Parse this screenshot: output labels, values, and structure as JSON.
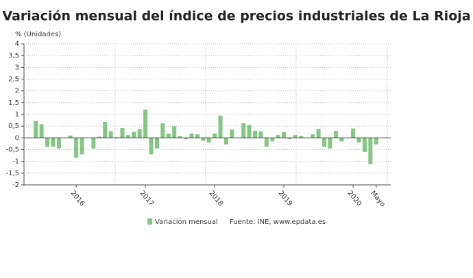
{
  "chart_data": {
    "type": "bar",
    "title": "Variación mensual del índice de precios industriales de La Rioja",
    "y_label": "% (Unidades)",
    "source": "Fuente: INE, www.epdata.es",
    "categories": [
      null,
      null,
      null,
      null,
      null,
      null,
      null,
      "2016",
      null,
      null,
      null,
      null,
      null,
      null,
      null,
      null,
      null,
      null,
      null,
      "2017",
      null,
      null,
      null,
      null,
      null,
      null,
      null,
      null,
      null,
      null,
      null,
      "2018",
      null,
      null,
      null,
      null,
      null,
      null,
      null,
      null,
      null,
      null,
      null,
      "2019",
      null,
      null,
      null,
      null,
      null,
      null,
      null,
      null,
      null,
      null,
      null,
      "2020",
      null,
      null,
      null,
      "Mayo"
    ],
    "series": [
      {
        "name": "Variación mensual",
        "color": "#82c782",
        "values": [
          0.72,
          0.58,
          -0.38,
          -0.38,
          -0.45,
          0.0,
          0.1,
          -0.85,
          -0.7,
          0.0,
          -0.45,
          0.05,
          0.68,
          0.28,
          0.03,
          0.42,
          0.12,
          0.25,
          0.38,
          1.2,
          -0.7,
          -0.45,
          0.62,
          0.18,
          0.5,
          0.07,
          -0.05,
          0.18,
          0.15,
          -0.12,
          -0.2,
          0.18,
          0.95,
          -0.28,
          0.35,
          0.0,
          0.62,
          0.55,
          0.3,
          0.28,
          -0.38,
          -0.15,
          0.12,
          0.25,
          -0.05,
          0.12,
          0.08,
          0.0,
          0.15,
          0.38,
          -0.38,
          -0.45,
          0.3,
          -0.15,
          0.0,
          0.4,
          -0.2,
          -0.6,
          -1.12,
          -0.28
        ]
      }
    ],
    "ylim": [
      -2,
      4
    ],
    "yticks": [
      -2,
      {
        "value": -1.5,
        "label": "-1,5"
      },
      -1,
      {
        "value": -0.5,
        "label": "-0,5"
      },
      0,
      {
        "value": 0.5,
        "label": "0,5"
      },
      1,
      {
        "value": 1.5,
        "label": "1,5"
      },
      2,
      {
        "value": 2.5,
        "label": "2,5"
      },
      3,
      {
        "value": 3.5,
        "label": "3,5"
      },
      4
    ],
    "grid": true
  }
}
